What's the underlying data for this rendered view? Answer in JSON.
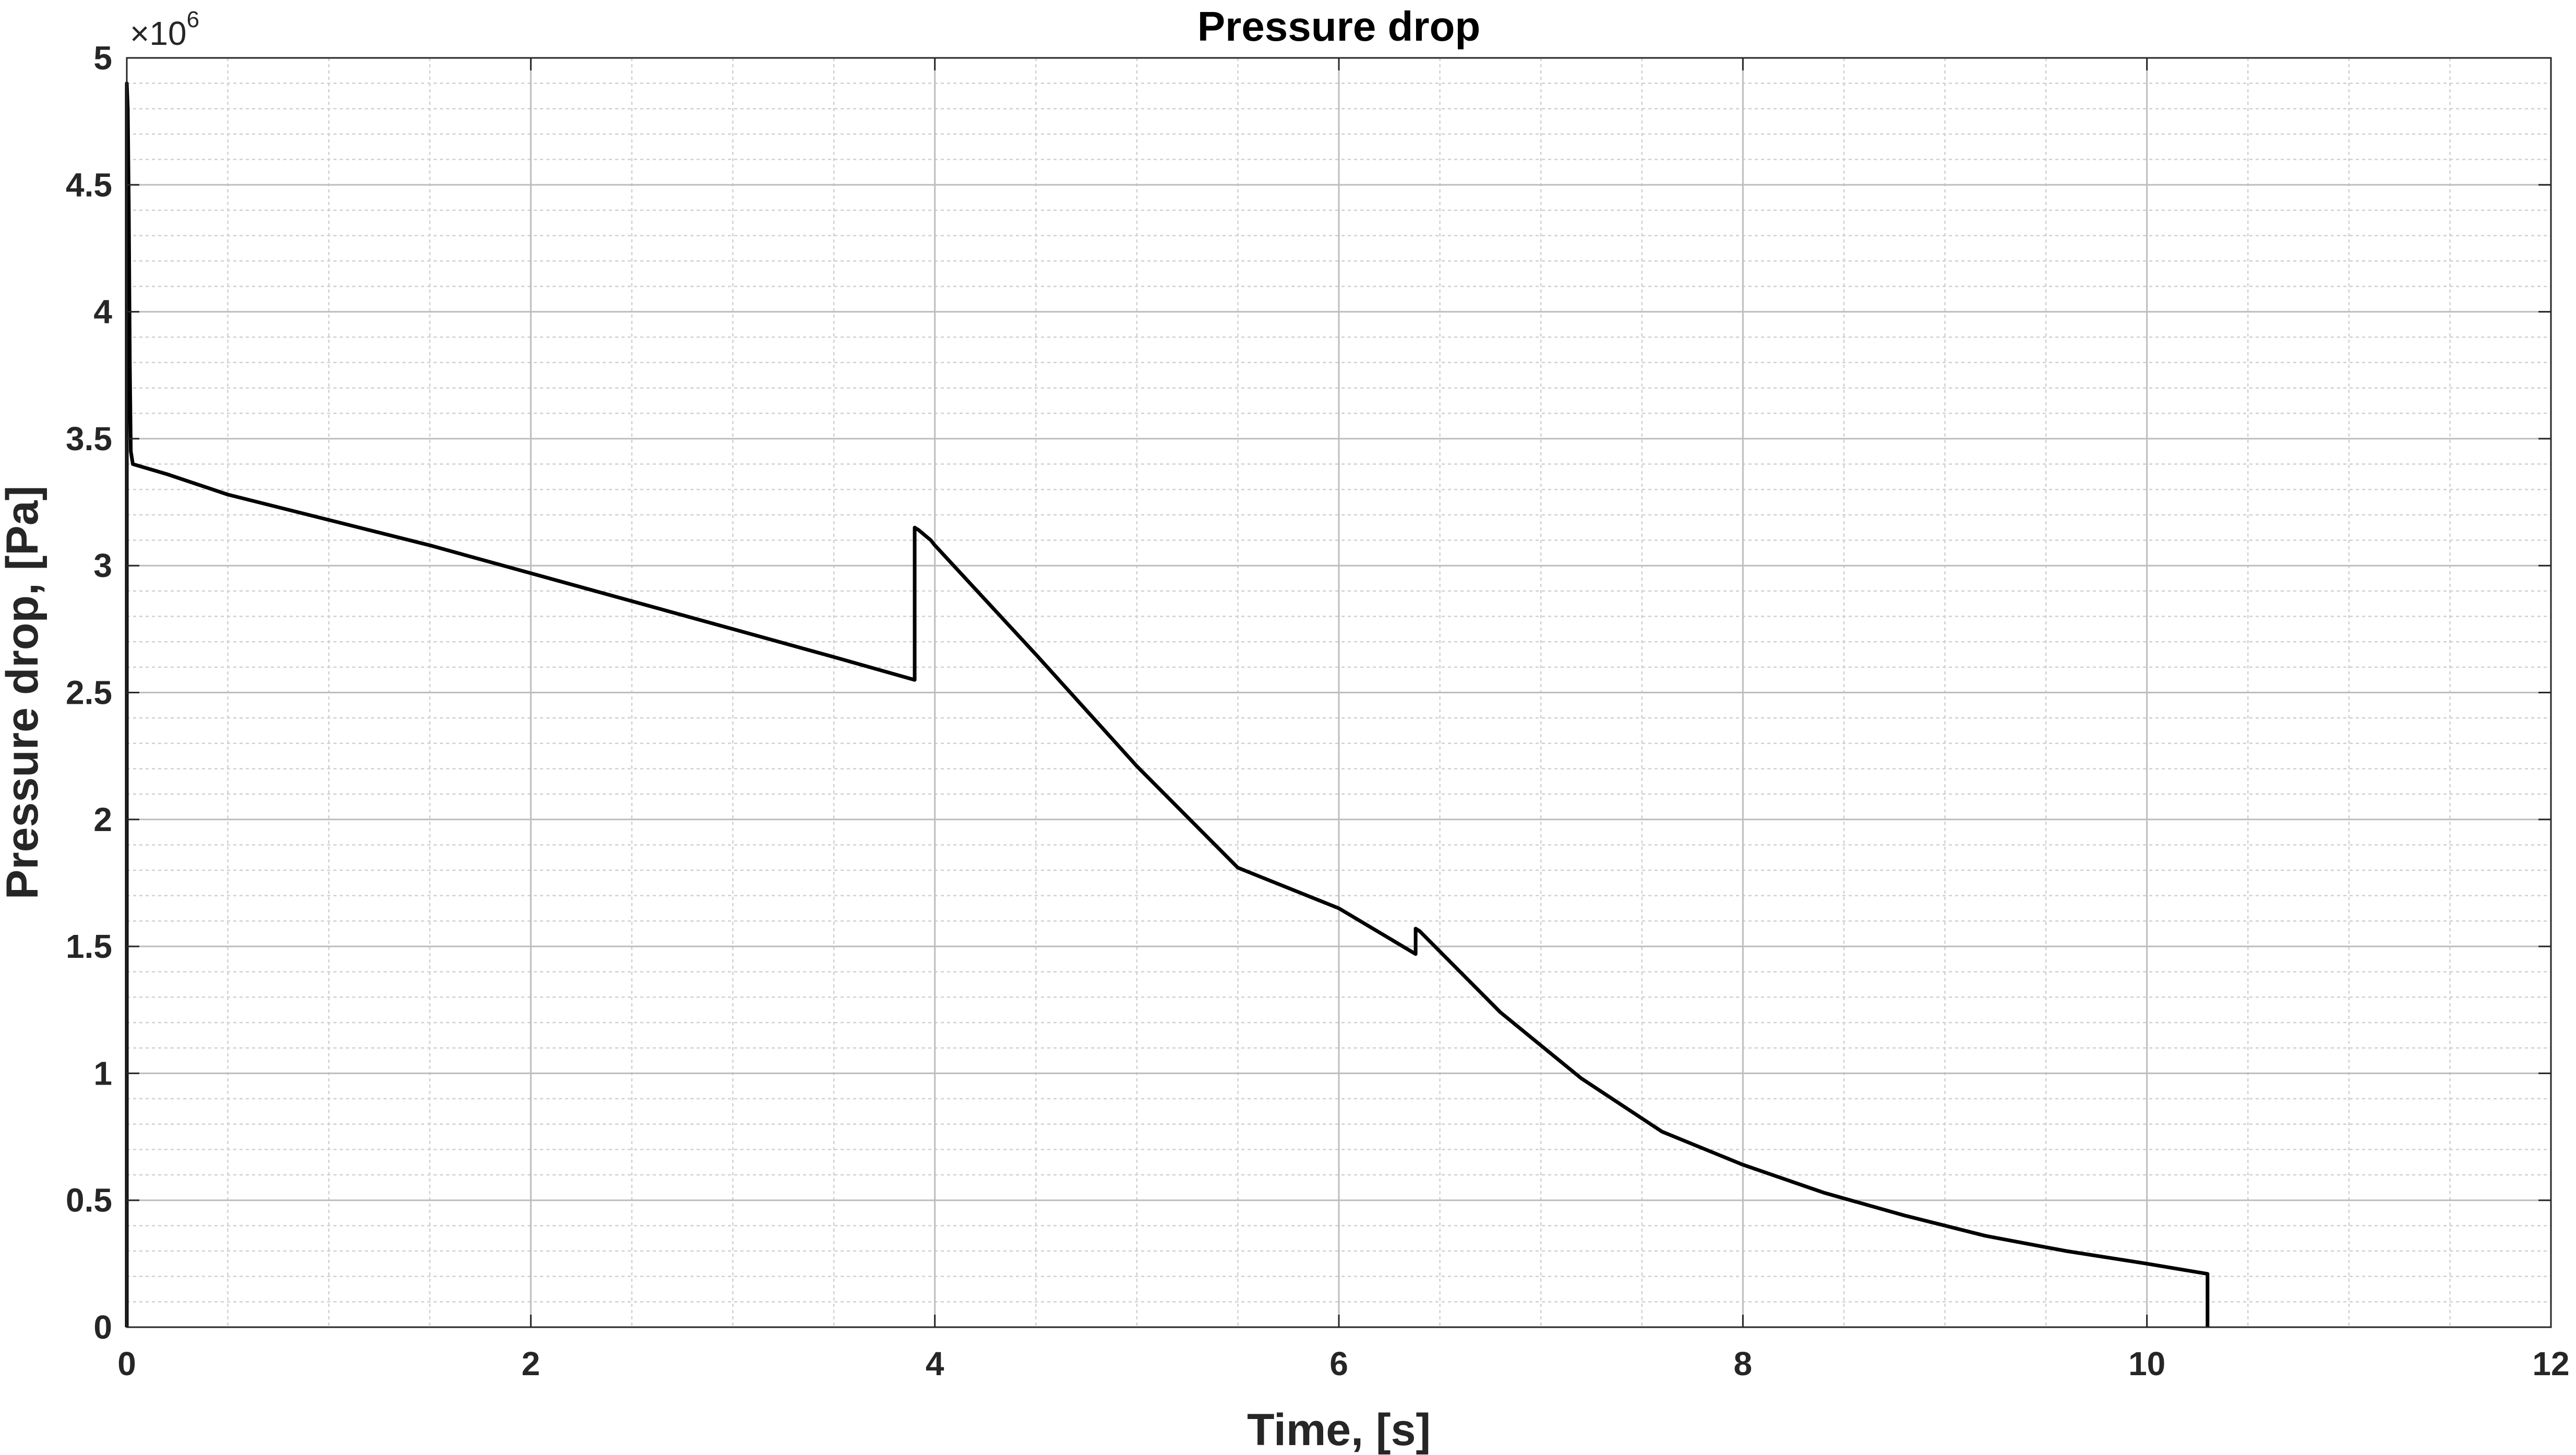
{
  "chart_data": {
    "type": "line",
    "title": "Pressure drop",
    "xlabel": "Time, [s]",
    "ylabel": "Pressure drop, [Pa]",
    "y_exponent_base": "×10",
    "y_exponent_power": "6",
    "xlim": [
      0,
      12
    ],
    "ylim": [
      0,
      5
    ],
    "x_ticks": [
      0,
      2,
      4,
      6,
      8,
      10,
      12
    ],
    "x_tick_labels": [
      "0",
      "2",
      "4",
      "6",
      "8",
      "10",
      "12"
    ],
    "y_ticks": [
      0,
      0.5,
      1,
      1.5,
      2,
      2.5,
      3,
      3.5,
      4,
      4.5,
      5
    ],
    "y_tick_labels": [
      "0",
      "0.5",
      "1",
      "1.5",
      "2",
      "2.5",
      "3",
      "3.5",
      "4",
      "4.5",
      "5"
    ],
    "x_minor_step": 0.5,
    "y_minor_step": 0.1,
    "grid": true,
    "minor_grid": true,
    "line_color": "#000000",
    "series": [
      {
        "x": [
          0,
          0,
          0.005,
          0.01,
          0.015,
          0.02,
          0.03,
          0.2,
          0.5,
          1.0,
          1.5,
          2.0,
          2.5,
          3.0,
          3.5,
          3.9,
          3.9,
          3.92,
          3.95,
          3.98,
          4.0,
          4.5,
          5.0,
          5.5,
          6.0,
          6.38,
          6.38,
          6.4,
          6.8,
          7.2,
          7.6,
          8.0,
          8.4,
          8.8,
          9.2,
          9.6,
          10.0,
          10.3,
          10.3
        ],
        "y": [
          0,
          4.9,
          4.8,
          4.4,
          3.8,
          3.45,
          3.4,
          3.36,
          3.28,
          3.18,
          3.08,
          2.97,
          2.86,
          2.75,
          2.64,
          2.55,
          3.15,
          3.14,
          3.12,
          3.1,
          3.08,
          2.65,
          2.21,
          1.81,
          1.65,
          1.47,
          1.57,
          1.56,
          1.24,
          0.98,
          0.77,
          0.64,
          0.53,
          0.44,
          0.36,
          0.3,
          0.25,
          0.21,
          0
        ]
      }
    ]
  }
}
